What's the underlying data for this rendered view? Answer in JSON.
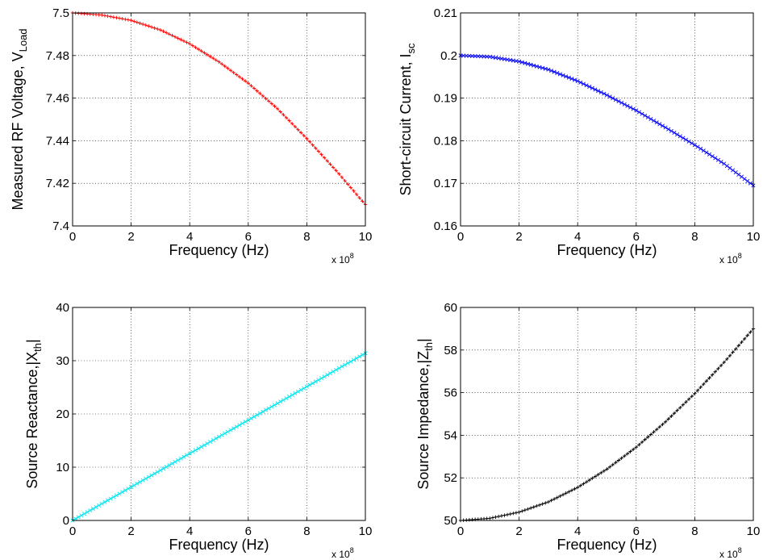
{
  "chart_data": [
    {
      "type": "line",
      "xlabel": "Frequency (Hz)",
      "ylabel_main": "Measured RF Voltage, V",
      "ylabel_sub": "Load",
      "xlim": [
        0,
        10
      ],
      "ylim": [
        7.4,
        7.5
      ],
      "x_exponent_label": "x 10",
      "x_exponent_power": "8",
      "x_ticks": [
        "0",
        "2",
        "4",
        "6",
        "8",
        "10"
      ],
      "y_ticks": [
        "7.4",
        "7.42",
        "7.44",
        "7.46",
        "7.48",
        "7.5"
      ],
      "grid": true,
      "marker": "+",
      "color": "#ff0000",
      "series": [
        {
          "x": [
            0,
            1,
            2,
            3,
            4,
            5,
            6,
            7,
            8,
            9,
            10
          ],
          "y": [
            7.5,
            7.499,
            7.4965,
            7.492,
            7.4855,
            7.477,
            7.467,
            7.455,
            7.441,
            7.426,
            7.41
          ]
        }
      ]
    },
    {
      "type": "line",
      "xlabel": "Frequency (Hz)",
      "ylabel_main": "Short-circuit Current, I",
      "ylabel_sub": "sc",
      "xlim": [
        0,
        10
      ],
      "ylim": [
        0.16,
        0.21
      ],
      "x_exponent_label": "x 10",
      "x_exponent_power": "8",
      "x_ticks": [
        "0",
        "2",
        "4",
        "6",
        "8",
        "10"
      ],
      "y_ticks": [
        "0.16",
        "0.17",
        "0.18",
        "0.19",
        "0.2",
        "0.21"
      ],
      "grid": true,
      "marker": "x",
      "color": "#0000ff",
      "series": [
        {
          "x": [
            0,
            1,
            2,
            3,
            4,
            5,
            6,
            7,
            8,
            9,
            10
          ],
          "y": [
            0.2,
            0.1997,
            0.1986,
            0.1967,
            0.194,
            0.1907,
            0.1871,
            0.1831,
            0.179,
            0.1746,
            0.1695
          ]
        }
      ]
    },
    {
      "type": "line",
      "xlabel": "Frequency (Hz)",
      "ylabel_main": "Source Reactance,|X",
      "ylabel_sub": "th",
      "ylabel_tail": "|",
      "xlim": [
        0,
        10
      ],
      "ylim": [
        0,
        40
      ],
      "x_exponent_label": "x 10",
      "x_exponent_power": "8",
      "x_ticks": [
        "0",
        "2",
        "4",
        "6",
        "8",
        "10"
      ],
      "y_ticks": [
        "0",
        "10",
        "20",
        "30",
        "40"
      ],
      "grid": true,
      "marker": "x",
      "color": "#00e5ee",
      "series": [
        {
          "x": [
            0,
            1,
            2,
            3,
            4,
            5,
            6,
            7,
            8,
            9,
            10
          ],
          "y": [
            0,
            3.14,
            6.28,
            9.42,
            12.57,
            15.71,
            18.85,
            21.99,
            25.13,
            28.27,
            31.4
          ]
        }
      ]
    },
    {
      "type": "line",
      "xlabel": "Frequency (Hz)",
      "ylabel_main": "Source Impedance,|Z",
      "ylabel_sub": "th",
      "ylabel_tail": "|",
      "xlim": [
        0,
        10
      ],
      "ylim": [
        50,
        60
      ],
      "x_exponent_label": "x 10",
      "x_exponent_power": "8",
      "x_ticks": [
        "0",
        "2",
        "4",
        "6",
        "8",
        "10"
      ],
      "y_ticks": [
        "50",
        "52",
        "54",
        "56",
        "58",
        "60"
      ],
      "grid": true,
      "marker": "+",
      "color": "#000000",
      "series": [
        {
          "x": [
            0,
            1,
            2,
            3,
            4,
            5,
            6,
            7,
            8,
            9,
            10
          ],
          "y": [
            50,
            50.1,
            50.39,
            50.87,
            51.55,
            52.41,
            53.44,
            54.63,
            55.96,
            57.42,
            59.0
          ]
        }
      ]
    }
  ]
}
